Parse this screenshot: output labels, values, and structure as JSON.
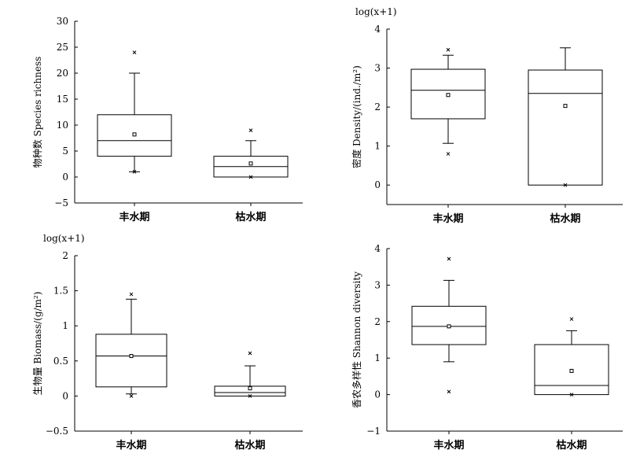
{
  "chart_data": [
    {
      "type": "box",
      "ylabel": "物种数 Species richness",
      "axis_note": "",
      "ylim": [
        -5,
        30
      ],
      "yticks": [
        -5,
        0,
        5,
        10,
        15,
        20,
        25,
        30
      ],
      "categories": [
        "丰水期",
        "枯水期"
      ],
      "boxes": [
        {
          "whisker_low": 1,
          "q1": 4,
          "median": 7,
          "q3": 12,
          "whisker_high": 20,
          "mean": 8.2,
          "outliers": [
            24,
            1
          ]
        },
        {
          "whisker_low": 0,
          "q1": 0,
          "median": 2,
          "q3": 4,
          "whisker_high": 7,
          "mean": 2.6,
          "outliers": [
            9,
            0
          ]
        }
      ]
    },
    {
      "type": "box",
      "ylabel": "密度 Density/(ind./m²)",
      "axis_note": "log(x+1)",
      "ylim": [
        -0.5,
        4
      ],
      "yticks": [
        0,
        1,
        2,
        3,
        4
      ],
      "categories": [
        "丰水期",
        "枯水期"
      ],
      "boxes": [
        {
          "whisker_low": 1.07,
          "q1": 1.7,
          "median": 2.43,
          "q3": 2.97,
          "whisker_high": 3.33,
          "mean": 2.31,
          "outliers": [
            3.47,
            0.8
          ]
        },
        {
          "whisker_low": 0,
          "q1": 0,
          "median": 2.35,
          "q3": 2.95,
          "whisker_high": 3.52,
          "mean": 2.03,
          "outliers": [
            0
          ]
        }
      ]
    },
    {
      "type": "box",
      "ylabel": "生物量 Biomass/(g/m²)",
      "axis_note": "log(x+1)",
      "ylim": [
        -0.5,
        2.0
      ],
      "yticks": [
        -0.5,
        0,
        0.5,
        1.0,
        1.5,
        2.0
      ],
      "categories": [
        "丰水期",
        "枯水期"
      ],
      "boxes": [
        {
          "whisker_low": 0.03,
          "q1": 0.13,
          "median": 0.57,
          "q3": 0.88,
          "whisker_high": 1.38,
          "mean": 0.57,
          "outliers": [
            1.45,
            0.0
          ]
        },
        {
          "whisker_low": 0,
          "q1": 0,
          "median": 0.05,
          "q3": 0.14,
          "whisker_high": 0.43,
          "mean": 0.11,
          "outliers": [
            0.61,
            0.0
          ]
        }
      ]
    },
    {
      "type": "box",
      "ylabel": "香农多样性 Shannon diversity",
      "axis_note": "",
      "ylim": [
        -1,
        4
      ],
      "yticks": [
        -1,
        0,
        1,
        2,
        3,
        4
      ],
      "categories": [
        "丰水期",
        "枯水期"
      ],
      "boxes": [
        {
          "whisker_low": 0.9,
          "q1": 1.37,
          "median": 1.87,
          "q3": 2.42,
          "whisker_high": 3.13,
          "mean": 1.87,
          "outliers": [
            3.72,
            0.08
          ]
        },
        {
          "whisker_low": 0,
          "q1": 0,
          "median": 0.25,
          "q3": 1.37,
          "whisker_high": 1.75,
          "mean": 0.65,
          "outliers": [
            2.07,
            0.0
          ]
        }
      ]
    }
  ]
}
